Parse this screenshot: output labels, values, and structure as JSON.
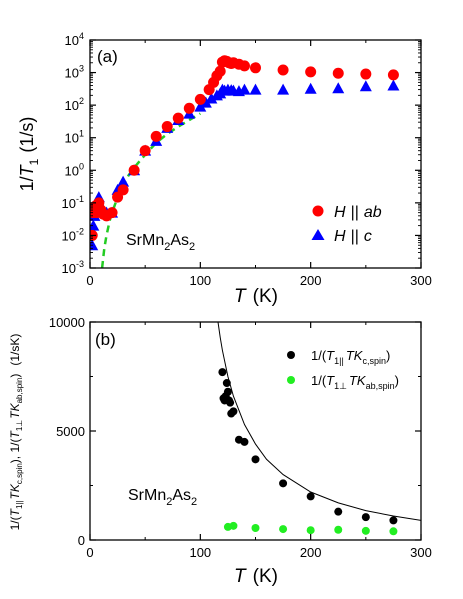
{
  "chart_data": [
    {
      "type": "scatter",
      "panel_label": "(a)",
      "annotation": {
        "base": "SrMn",
        "sub1": "2",
        "mid": "As",
        "sub2": "2"
      },
      "xlabel": {
        "italic": "T",
        "unit": "(K)"
      },
      "ylabel": {
        "prefix": "1/",
        "italic": "T",
        "sub": "1",
        "unit": "(1/s)"
      },
      "xlim": [
        0,
        300
      ],
      "ylim_log10": [
        -3,
        4
      ],
      "y_scale": "log",
      "x_ticks": [
        "0",
        "100",
        "200",
        "300"
      ],
      "y_tick_exponents": [
        -3,
        -2,
        -1,
        0,
        1,
        2,
        3,
        4
      ],
      "y_tick_base": "10",
      "grid": false,
      "legend_position": "lower-right",
      "series": [
        {
          "name": "H || ab",
          "legend": {
            "h": "H",
            "bars": "||",
            "field": "ab"
          },
          "marker": "circle",
          "color": "#ff0000",
          "x": [
            2,
            3,
            4,
            5,
            6,
            7,
            8,
            10,
            12,
            15,
            20,
            25,
            30,
            40,
            50,
            60,
            70,
            80,
            90,
            100,
            108,
            112,
            115,
            118,
            120,
            122,
            124,
            126,
            128,
            130,
            135,
            140,
            150,
            175,
            200,
            225,
            250,
            275
          ],
          "y": [
            0.01,
            0.05,
            0.06,
            0.08,
            0.05,
            0.09,
            0.1,
            0.06,
            0.045,
            0.04,
            0.05,
            0.15,
            0.25,
            1.0,
            4.0,
            11,
            22,
            40,
            80,
            150,
            300,
            500,
            800,
            1100,
            2100,
            2300,
            2200,
            2000,
            1900,
            2000,
            1800,
            1600,
            1400,
            1200,
            1050,
            950,
            900,
            850
          ]
        },
        {
          "name": "H || c",
          "legend": {
            "h": "H",
            "bars": "||",
            "field": "c"
          },
          "marker": "triangle",
          "color": "#0000ff",
          "x": [
            2,
            3,
            4,
            5,
            6,
            8,
            10,
            12,
            15,
            20,
            25,
            30,
            40,
            50,
            60,
            70,
            80,
            90,
            100,
            105,
            110,
            115,
            118,
            120,
            122,
            125,
            128,
            130,
            135,
            140,
            150,
            175,
            200,
            225,
            250,
            275
          ],
          "y": [
            0.005,
            0.02,
            0.04,
            0.06,
            0.1,
            0.15,
            0.08,
            0.06,
            0.05,
            0.05,
            0.25,
            0.45,
            1.0,
            4.0,
            8,
            20,
            35,
            55,
            90,
            120,
            160,
            200,
            230,
            300,
            280,
            300,
            290,
            280,
            270,
            300,
            300,
            300,
            320,
            330,
            380,
            400
          ]
        },
        {
          "name": "",
          "marker": "dashed-line",
          "color": "#22cc22",
          "x": [
            11,
            13,
            15,
            18,
            20,
            25,
            30,
            35,
            40,
            50,
            60,
            70,
            80,
            90,
            100
          ],
          "y": [
            0.001,
            0.004,
            0.01,
            0.03,
            0.05,
            0.15,
            0.35,
            0.7,
            1.2,
            3,
            7,
            13,
            22,
            35,
            55
          ]
        }
      ]
    },
    {
      "type": "scatter",
      "panel_label": "(b)",
      "annotation": {
        "base": "SrMn",
        "sub1": "2",
        "mid": "As",
        "sub2": "2"
      },
      "xlabel": {
        "italic": "T",
        "unit": "(K)"
      },
      "ylabel": {
        "part1": {
          "prefix": "1/(",
          "italic1": "T",
          "sub1": "1||",
          "italic2": "TK",
          "sub2": "c,spin",
          "close": ")"
        },
        "sep": ", ",
        "part2": {
          "prefix": "1/(",
          "italic1": "T",
          "sub1": "1⊥",
          "italic2": "TK",
          "sub2": "ab,spin",
          "close": ")"
        },
        "unit": "(1/sK)"
      },
      "xlim": [
        0,
        300
      ],
      "ylim": [
        0,
        10000
      ],
      "x_ticks": [
        "0",
        "100",
        "200",
        "300"
      ],
      "y_ticks": [
        "0",
        "5000",
        "10000"
      ],
      "grid": false,
      "legend_position": "top-right",
      "series": [
        {
          "name": "1/(T1|| TKc,spin)",
          "legend": {
            "prefix": "1/(",
            "italic1": "T",
            "sub1": "1||",
            "italic2": "TK",
            "sub2": "c,spin",
            "close": ")"
          },
          "marker": "circle",
          "color": "#000000",
          "x": [
            120,
            121,
            122,
            123,
            124,
            125,
            126,
            127,
            128,
            130,
            135,
            140,
            150,
            175,
            200,
            225,
            250,
            275
          ],
          "y": [
            7700,
            6500,
            6400,
            6600,
            7200,
            6800,
            6400,
            6300,
            5800,
            5900,
            4600,
            4500,
            3700,
            2600,
            2000,
            1300,
            1050,
            900
          ]
        },
        {
          "name": "1/(T1⊥ TKab,spin)",
          "legend": {
            "prefix": "1/(",
            "italic1": "T",
            "sub1": "1⊥",
            "italic2": "TK",
            "sub2": "ab,spin",
            "close": ")"
          },
          "marker": "circle",
          "color": "#22ee22",
          "x": [
            125,
            130,
            150,
            175,
            200,
            225,
            250,
            275
          ],
          "y": [
            600,
            650,
            550,
            500,
            450,
            470,
            420,
            400
          ]
        },
        {
          "name": "",
          "marker": "line",
          "color": "#000000",
          "x": [
            116,
            118,
            120,
            125,
            130,
            140,
            150,
            160,
            175,
            200,
            225,
            250,
            275,
            300
          ],
          "y": [
            10000,
            9300,
            8700,
            7500,
            6600,
            5300,
            4400,
            3700,
            3000,
            2200,
            1700,
            1350,
            1100,
            900
          ]
        }
      ]
    }
  ]
}
